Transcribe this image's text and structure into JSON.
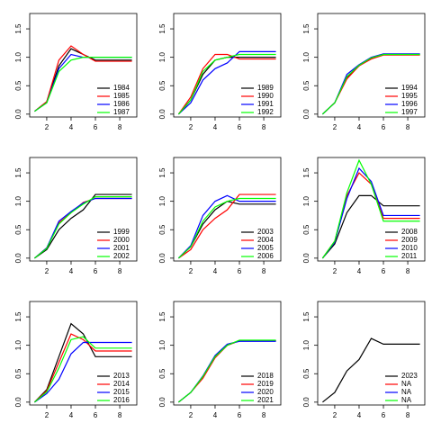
{
  "chart_data": [
    {
      "type": "line",
      "x": [
        1,
        2,
        3,
        4,
        5,
        6,
        7,
        8,
        9
      ],
      "xlim": [
        0.6,
        9.4
      ],
      "xticks": [
        2,
        4,
        6,
        8
      ],
      "ylim": [
        -0.05,
        1.77
      ],
      "yticks": [
        {
          "value": 0,
          "label": "0.0"
        },
        {
          "value": 0.5,
          "label": "0.5"
        },
        {
          "value": 1,
          "label": "1.0"
        },
        {
          "value": 1.5,
          "label": "1.5"
        }
      ],
      "legend": "bottomright",
      "series": [
        {
          "name": "1984",
          "color": "#000000",
          "values": [
            0.05,
            0.22,
            0.85,
            1.15,
            1.05,
            0.95,
            0.95,
            0.95,
            0.95
          ]
        },
        {
          "name": "1985",
          "color": "#ff0000",
          "values": [
            0.05,
            0.22,
            0.95,
            1.2,
            1.05,
            0.93,
            0.93,
            0.93,
            0.93
          ]
        },
        {
          "name": "1986",
          "color": "#0000ff",
          "values": [
            0.05,
            0.2,
            0.8,
            1.05,
            1.0,
            1.0,
            1.0,
            1.0,
            1.0
          ]
        },
        {
          "name": "1987",
          "color": "#00ff00",
          "values": [
            0.05,
            0.2,
            0.75,
            0.95,
            1.0,
            1.0,
            1.0,
            1.0,
            1.0
          ]
        }
      ]
    },
    {
      "type": "line",
      "x": [
        1,
        2,
        3,
        4,
        5,
        6,
        7,
        8,
        9
      ],
      "xlim": [
        0.6,
        9.4
      ],
      "xticks": [
        2,
        4,
        6,
        8
      ],
      "ylim": [
        -0.05,
        1.77
      ],
      "yticks": [
        {
          "value": 0,
          "label": "0.0"
        },
        {
          "value": 0.5,
          "label": "0.5"
        },
        {
          "value": 1,
          "label": "1.0"
        },
        {
          "value": 1.5,
          "label": "1.5"
        }
      ],
      "legend": "bottomright",
      "series": [
        {
          "name": "1989",
          "color": "#000000",
          "values": [
            0,
            0.25,
            0.7,
            0.95,
            1.0,
            1.0,
            1.0,
            1.0,
            1.0
          ]
        },
        {
          "name": "1990",
          "color": "#ff0000",
          "values": [
            0,
            0.3,
            0.8,
            1.05,
            1.05,
            0.97,
            0.97,
            0.97,
            0.97
          ]
        },
        {
          "name": "1991",
          "color": "#0000ff",
          "values": [
            0,
            0.2,
            0.6,
            0.8,
            0.9,
            1.1,
            1.1,
            1.1,
            1.1
          ]
        },
        {
          "name": "1992",
          "color": "#00ff00",
          "values": [
            0,
            0.25,
            0.75,
            0.95,
            1.0,
            1.05,
            1.05,
            1.05,
            1.05
          ]
        }
      ]
    },
    {
      "type": "line",
      "x": [
        1,
        2,
        3,
        4,
        5,
        6,
        7,
        8,
        9
      ],
      "xlim": [
        0.6,
        9.4
      ],
      "xticks": [
        2,
        4,
        6,
        8
      ],
      "ylim": [
        -0.05,
        1.77
      ],
      "yticks": [
        {
          "value": 0,
          "label": "0.0"
        },
        {
          "value": 0.5,
          "label": "0.5"
        },
        {
          "value": 1,
          "label": "1.0"
        },
        {
          "value": 1.5,
          "label": "1.5"
        }
      ],
      "legend": "bottomright",
      "series": [
        {
          "name": "1994",
          "color": "#000000",
          "values": [
            0,
            0.2,
            0.65,
            0.85,
            0.98,
            1.05,
            1.05,
            1.05,
            1.05
          ]
        },
        {
          "name": "1995",
          "color": "#ff0000",
          "values": [
            0,
            0.2,
            0.62,
            0.85,
            0.97,
            1.04,
            1.04,
            1.04,
            1.04
          ]
        },
        {
          "name": "1996",
          "color": "#0000ff",
          "values": [
            0,
            0.2,
            0.7,
            0.87,
            1.0,
            1.06,
            1.06,
            1.06,
            1.06
          ]
        },
        {
          "name": "1997",
          "color": "#00ff00",
          "values": [
            0,
            0.2,
            0.66,
            0.86,
            0.99,
            1.05,
            1.05,
            1.05,
            1.05
          ]
        }
      ]
    },
    {
      "type": "line",
      "x": [
        1,
        2,
        3,
        4,
        5,
        6,
        7,
        8,
        9
      ],
      "xlim": [
        0.6,
        9.4
      ],
      "xticks": [
        2,
        4,
        6,
        8
      ],
      "ylim": [
        -0.05,
        1.77
      ],
      "yticks": [
        {
          "value": 0,
          "label": "0.0"
        },
        {
          "value": 0.5,
          "label": "0.5"
        },
        {
          "value": 1,
          "label": "1.0"
        },
        {
          "value": 1.5,
          "label": "1.5"
        }
      ],
      "legend": "bottomright",
      "series": [
        {
          "name": "1999",
          "color": "#000000",
          "values": [
            0,
            0.15,
            0.5,
            0.7,
            0.85,
            1.12,
            1.12,
            1.12,
            1.12
          ]
        },
        {
          "name": "2000",
          "color": "#ff0000",
          "values": [
            0,
            0.18,
            0.62,
            0.8,
            0.98,
            1.05,
            1.05,
            1.05,
            1.05
          ]
        },
        {
          "name": "2001",
          "color": "#0000ff",
          "values": [
            0,
            0.18,
            0.65,
            0.82,
            0.97,
            1.05,
            1.05,
            1.05,
            1.05
          ]
        },
        {
          "name": "2002",
          "color": "#00ff00",
          "values": [
            0,
            0.17,
            0.6,
            0.8,
            0.95,
            1.08,
            1.08,
            1.08,
            1.08
          ]
        }
      ]
    },
    {
      "type": "line",
      "x": [
        1,
        2,
        3,
        4,
        5,
        6,
        7,
        8,
        9
      ],
      "xlim": [
        0.6,
        9.4
      ],
      "xticks": [
        2,
        4,
        6,
        8
      ],
      "ylim": [
        -0.05,
        1.77
      ],
      "yticks": [
        {
          "value": 0,
          "label": "0.0"
        },
        {
          "value": 0.5,
          "label": "0.5"
        },
        {
          "value": 1,
          "label": "1.0"
        },
        {
          "value": 1.5,
          "label": "1.5"
        }
      ],
      "legend": "bottomright",
      "series": [
        {
          "name": "2003",
          "color": "#000000",
          "values": [
            0,
            0.2,
            0.6,
            0.85,
            1.0,
            0.95,
            0.95,
            0.95,
            0.95
          ]
        },
        {
          "name": "2004",
          "color": "#ff0000",
          "values": [
            0,
            0.15,
            0.5,
            0.7,
            0.85,
            1.12,
            1.12,
            1.12,
            1.12
          ]
        },
        {
          "name": "2005",
          "color": "#0000ff",
          "values": [
            0,
            0.22,
            0.75,
            1.0,
            1.1,
            1.0,
            1.0,
            1.0,
            1.0
          ]
        },
        {
          "name": "2006",
          "color": "#00ff00",
          "values": [
            0,
            0.2,
            0.65,
            0.9,
            1.0,
            1.05,
            1.05,
            1.05,
            1.05
          ]
        }
      ]
    },
    {
      "type": "line",
      "x": [
        1,
        2,
        3,
        4,
        5,
        6,
        7,
        8,
        9
      ],
      "xlim": [
        0.6,
        9.4
      ],
      "xticks": [
        2,
        4,
        6,
        8
      ],
      "ylim": [
        -0.05,
        1.77
      ],
      "yticks": [
        {
          "value": 0,
          "label": "0.0"
        },
        {
          "value": 0.5,
          "label": "0.5"
        },
        {
          "value": 1,
          "label": "1.0"
        },
        {
          "value": 1.5,
          "label": "1.5"
        }
      ],
      "legend": "bottomright",
      "series": [
        {
          "name": "2008",
          "color": "#000000",
          "values": [
            0,
            0.25,
            0.8,
            1.1,
            1.1,
            0.92,
            0.92,
            0.92,
            0.92
          ]
        },
        {
          "name": "2009",
          "color": "#ff0000",
          "values": [
            0,
            0.3,
            1.1,
            1.5,
            1.3,
            0.7,
            0.7,
            0.7,
            0.7
          ]
        },
        {
          "name": "2010",
          "color": "#0000ff",
          "values": [
            0,
            0.28,
            1.05,
            1.58,
            1.35,
            0.75,
            0.75,
            0.75,
            0.75
          ]
        },
        {
          "name": "2011",
          "color": "#00ff00",
          "values": [
            0,
            0.3,
            1.15,
            1.72,
            1.3,
            0.65,
            0.65,
            0.65,
            0.65
          ]
        }
      ]
    },
    {
      "type": "line",
      "x": [
        1,
        2,
        3,
        4,
        5,
        6,
        7,
        8,
        9
      ],
      "xlim": [
        0.6,
        9.4
      ],
      "xticks": [
        2,
        4,
        6,
        8
      ],
      "ylim": [
        -0.05,
        1.77
      ],
      "yticks": [
        {
          "value": 0,
          "label": "0.0"
        },
        {
          "value": 0.5,
          "label": "0.5"
        },
        {
          "value": 1,
          "label": "1.0"
        },
        {
          "value": 1.5,
          "label": "1.5"
        }
      ],
      "legend": "bottomright",
      "series": [
        {
          "name": "2013",
          "color": "#000000",
          "values": [
            0,
            0.22,
            0.8,
            1.38,
            1.2,
            0.8,
            0.8,
            0.8,
            0.8
          ]
        },
        {
          "name": "2014",
          "color": "#ff0000",
          "values": [
            0,
            0.2,
            0.7,
            1.2,
            1.1,
            0.9,
            0.9,
            0.9,
            0.9
          ]
        },
        {
          "name": "2015",
          "color": "#0000ff",
          "values": [
            0,
            0.15,
            0.4,
            0.85,
            1.05,
            1.05,
            1.05,
            1.05,
            1.05
          ]
        },
        {
          "name": "2016",
          "color": "#00ff00",
          "values": [
            0,
            0.18,
            0.6,
            1.1,
            1.15,
            0.95,
            0.95,
            0.95,
            0.95
          ]
        }
      ]
    },
    {
      "type": "line",
      "x": [
        1,
        2,
        3,
        4,
        5,
        6,
        7,
        8,
        9
      ],
      "xlim": [
        0.6,
        9.4
      ],
      "xticks": [
        2,
        4,
        6,
        8
      ],
      "ylim": [
        -0.05,
        1.77
      ],
      "yticks": [
        {
          "value": 0,
          "label": "0.0"
        },
        {
          "value": 0.5,
          "label": "0.5"
        },
        {
          "value": 1,
          "label": "1.0"
        },
        {
          "value": 1.5,
          "label": "1.5"
        }
      ],
      "legend": "bottomright",
      "series": [
        {
          "name": "2018",
          "color": "#000000",
          "values": [
            0,
            0.17,
            0.45,
            0.8,
            1.0,
            1.08,
            1.08,
            1.08,
            1.08
          ]
        },
        {
          "name": "2019",
          "color": "#ff0000",
          "values": [
            0,
            0.17,
            0.42,
            0.78,
            1.0,
            1.08,
            1.08,
            1.08,
            1.08
          ]
        },
        {
          "name": "2020",
          "color": "#0000ff",
          "values": [
            0,
            0.17,
            0.46,
            0.82,
            1.02,
            1.07,
            1.07,
            1.07,
            1.07
          ]
        },
        {
          "name": "2021",
          "color": "#00ff00",
          "values": [
            0,
            0.17,
            0.45,
            0.8,
            1.0,
            1.09,
            1.09,
            1.09,
            1.09
          ]
        }
      ]
    },
    {
      "type": "line",
      "x": [
        1,
        2,
        3,
        4,
        5,
        6,
        7,
        8,
        9
      ],
      "xlim": [
        0.6,
        9.4
      ],
      "xticks": [
        2,
        4,
        6,
        8
      ],
      "ylim": [
        -0.05,
        1.77
      ],
      "yticks": [
        {
          "value": 0,
          "label": "0.0"
        },
        {
          "value": 0.5,
          "label": "0.5"
        },
        {
          "value": 1,
          "label": "1.0"
        },
        {
          "value": 1.5,
          "label": "1.5"
        }
      ],
      "legend": "bottomright",
      "series": [
        {
          "name": "2023",
          "color": "#000000",
          "values": [
            0,
            0.17,
            0.55,
            0.75,
            1.12,
            1.02,
            1.02,
            1.02,
            1.02
          ]
        },
        {
          "name": "NA",
          "color": "#ff0000",
          "values": [
            null,
            null,
            null,
            null,
            null,
            null,
            null,
            null,
            null
          ]
        },
        {
          "name": "NA",
          "color": "#0000ff",
          "values": [
            null,
            null,
            null,
            null,
            null,
            null,
            null,
            null,
            null
          ]
        },
        {
          "name": "NA",
          "color": "#00ff00",
          "values": [
            null,
            null,
            null,
            null,
            null,
            null,
            null,
            null,
            null
          ]
        }
      ]
    }
  ]
}
